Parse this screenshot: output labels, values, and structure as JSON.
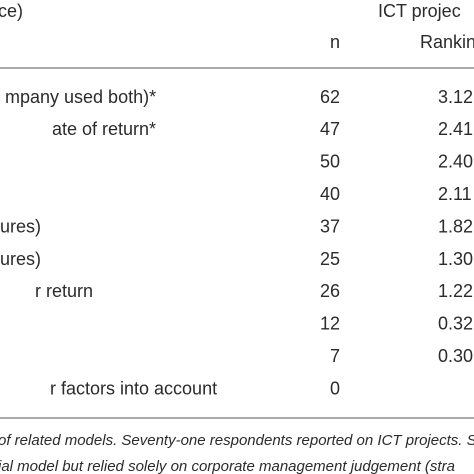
{
  "table": {
    "header": {
      "label": "ce)",
      "group": "ICT projec",
      "n": "n",
      "ranking": "Rankin"
    },
    "rows": [
      {
        "label": "mpany used both)*",
        "n": "62",
        "ranking": "3.12"
      },
      {
        "label": "ate of return*",
        "n": "47",
        "ranking": "2.41"
      },
      {
        "n": "50",
        "ranking": "2.40"
      },
      {
        "n": "40",
        "ranking": "2.11"
      },
      {
        "label": "ures)",
        "n": "37",
        "ranking": "1.82"
      },
      {
        "label": "ures)",
        "n": "25",
        "ranking": "1.30"
      },
      {
        "label": "r return",
        "n": "26",
        "ranking": "1.22"
      },
      {
        "n": "12",
        "ranking": "0.32"
      },
      {
        "n": "7",
        "ranking": "0.30"
      },
      {
        "label": "r factors into account",
        "n": "0"
      }
    ],
    "footnotes": [
      "of related models. Seventy-one respondents reported on ICT projects. S",
      "ial model but relied solely on corporate management judgement (stra"
    ]
  }
}
